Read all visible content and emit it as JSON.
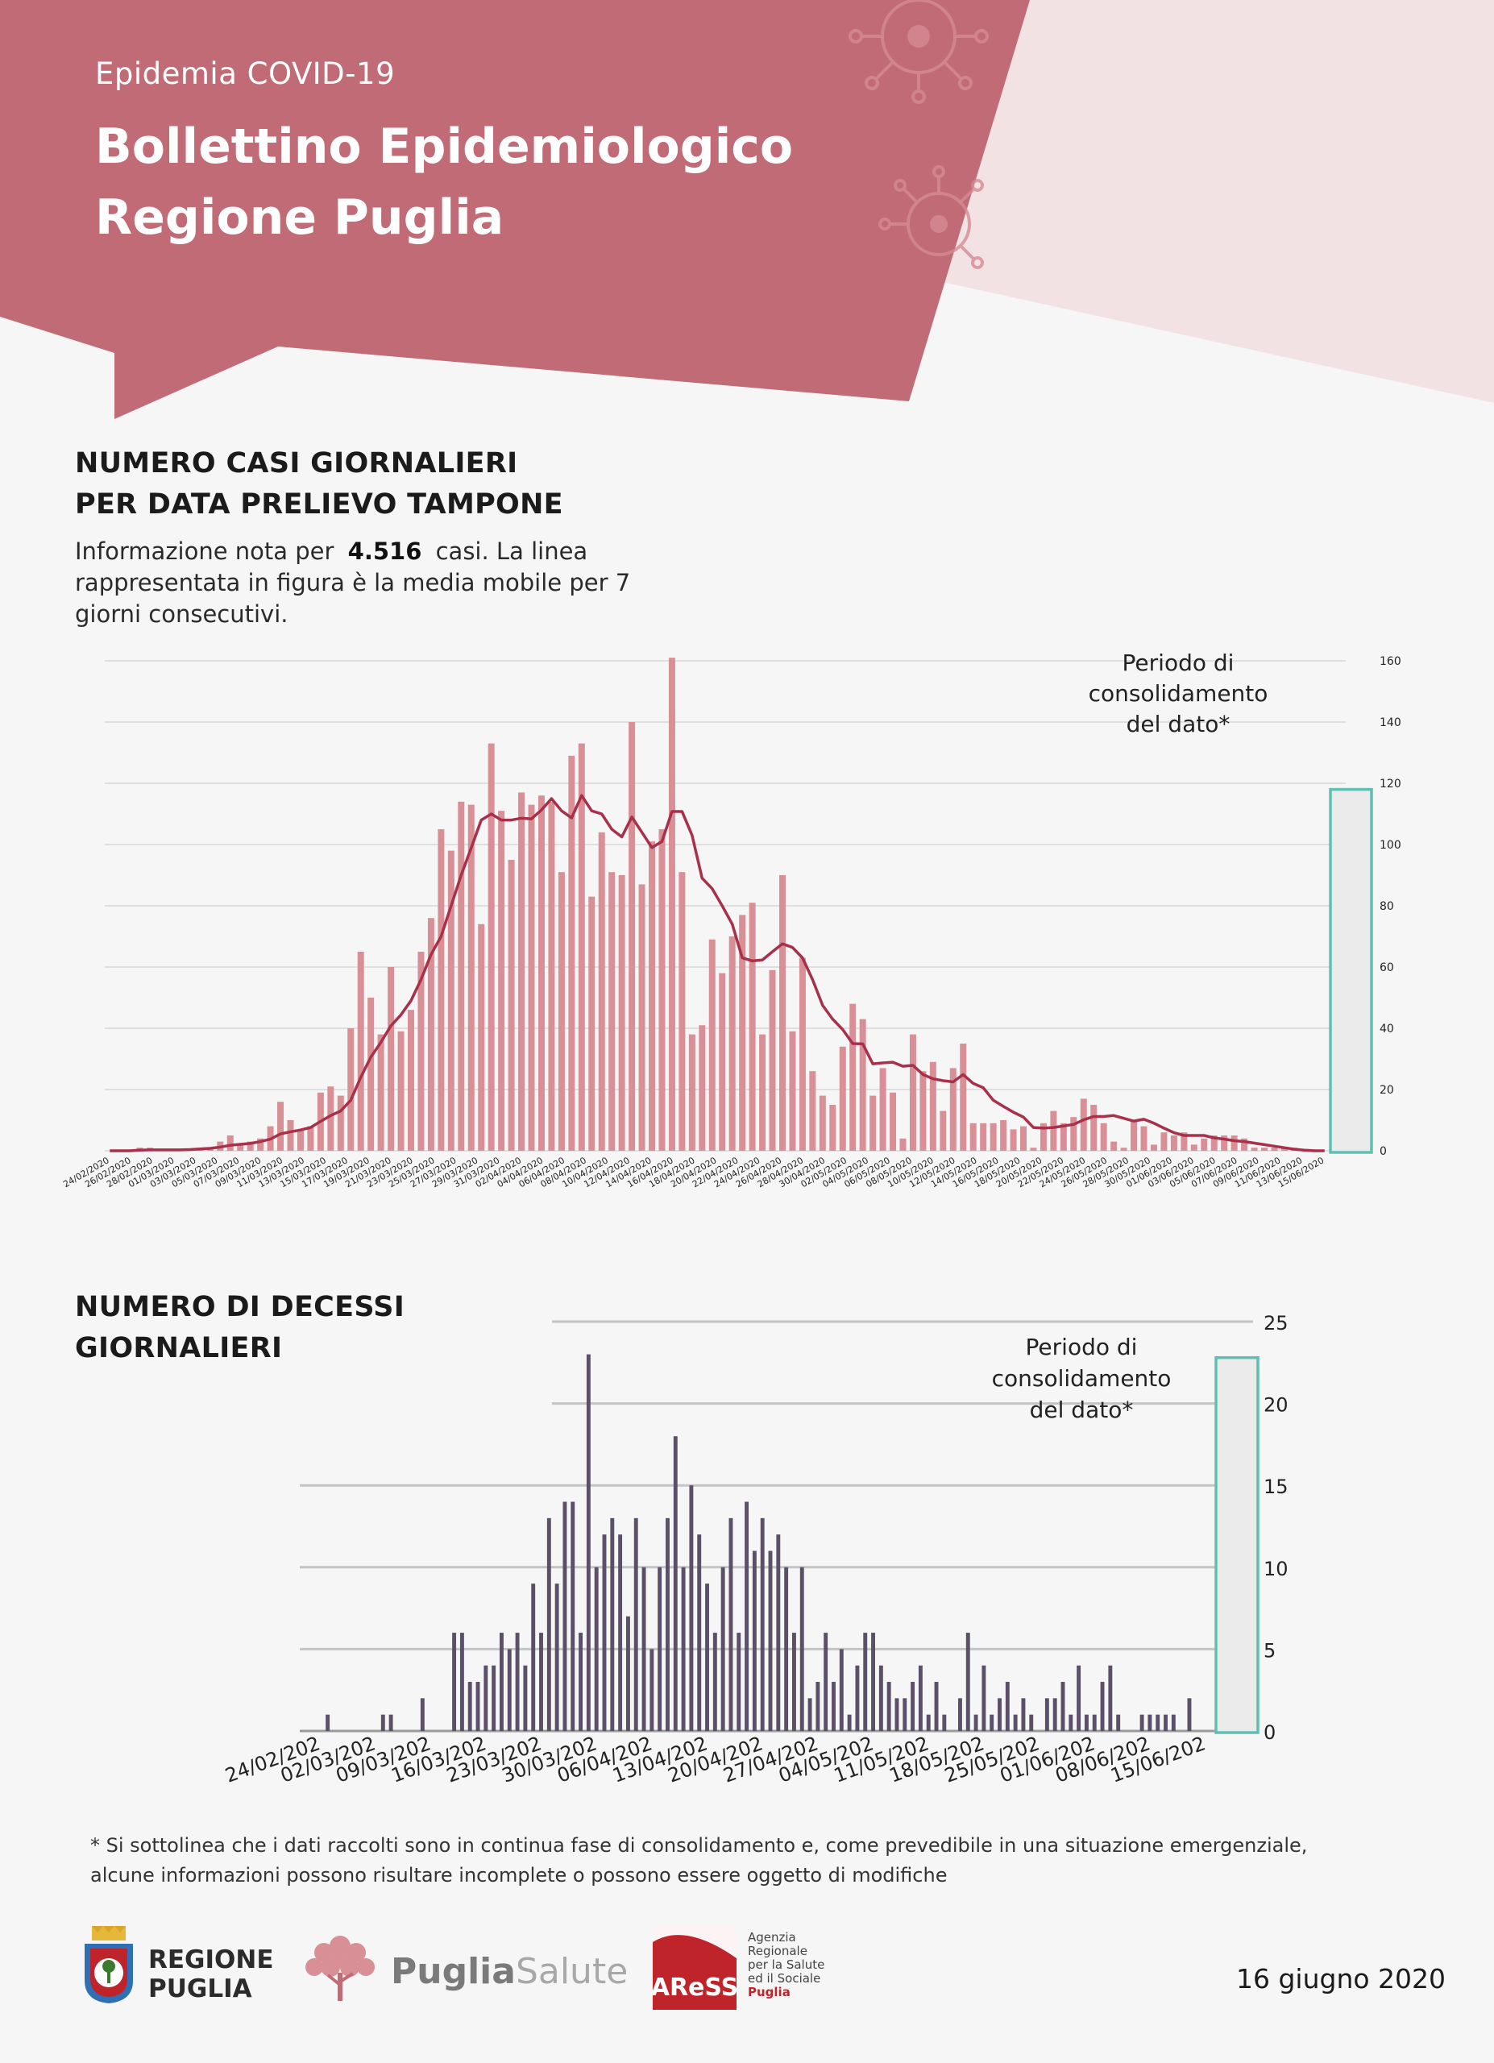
{
  "header": {
    "pre_title": "Epidemia COVID-19",
    "title_line1": "Bollettino Epidemiologico",
    "title_line2": "Regione Puglia",
    "colors": {
      "banner": "#c06b76",
      "banner_light": "#f3e2e3"
    }
  },
  "section_cases": {
    "title_line1": "NUMERO CASI GIORNALIERI",
    "title_line2": "PER DATA PRELIEVO TAMPONE",
    "desc_pre": "Informazione nota per",
    "desc_number": "4.516",
    "desc_post": "casi. La linea rappresentata in figura è la media mobile per 7 giorni consecutivi."
  },
  "section_deaths": {
    "title_line1": "NUMERO DI DECESSI",
    "title_line2": "GIORNALIERI"
  },
  "chart_data": [
    {
      "type": "bar",
      "id": "cases",
      "title": "NUMERO CASI GIORNALIERI PER DATA PRELIEVO TAMPONE",
      "x_start": "24/02/2020",
      "x_end": "15/06/2020",
      "tick_labels": [
        "24/02/2020",
        "26/02/2020",
        "28/02/2020",
        "01/03/2020",
        "03/03/2020",
        "05/03/2020",
        "07/03/2020",
        "09/03/2020",
        "11/03/2020",
        "13/03/2020",
        "15/03/2020",
        "17/03/2020",
        "19/03/2020",
        "21/03/2020",
        "23/03/2020",
        "25/03/2020",
        "27/03/2020",
        "29/03/2020",
        "31/03/2020",
        "02/04/2020",
        "04/04/2020",
        "06/04/2020",
        "08/04/2020",
        "10/04/2020",
        "12/04/2020",
        "14/04/2020",
        "16/04/2020",
        "18/04/2020",
        "20/04/2020",
        "22/04/2020",
        "24/04/2020",
        "26/04/2020",
        "28/04/2020",
        "30/04/2020",
        "02/05/2020",
        "04/05/2020",
        "06/05/2020",
        "08/05/2020",
        "10/05/2020",
        "12/05/2020",
        "14/05/2020",
        "16/05/2020",
        "18/05/2020",
        "20/05/2020",
        "22/05/2020",
        "24/05/2020",
        "26/05/2020",
        "28/05/2020",
        "30/05/2020",
        "01/06/2020",
        "03/06/2020",
        "05/06/2020",
        "07/06/2020",
        "09/06/2020",
        "11/06/2020",
        "13/06/2020",
        "15/06/2020"
      ],
      "y_ticks": [
        "0",
        "20",
        "40",
        "60",
        "80",
        "100",
        "120",
        "140",
        "160"
      ],
      "ylim": [
        0,
        160
      ],
      "values": [
        0,
        0,
        0,
        1,
        1,
        0,
        0,
        0,
        0,
        1,
        1,
        3,
        5,
        2,
        3,
        4,
        8,
        16,
        10,
        7,
        8,
        19,
        21,
        18,
        40,
        65,
        50,
        38,
        60,
        39,
        46,
        65,
        76,
        105,
        98,
        114,
        113,
        74,
        133,
        111,
        95,
        117,
        113,
        116,
        114,
        91,
        129,
        133,
        83,
        104,
        91,
        90,
        140,
        87,
        101,
        105,
        161,
        91,
        38,
        41,
        69,
        58,
        70,
        77,
        81,
        38,
        59,
        90,
        39,
        63,
        26,
        18,
        15,
        34,
        48,
        43,
        18,
        27,
        19,
        4,
        38,
        26,
        29,
        13,
        27,
        35,
        9,
        9,
        9,
        10,
        7,
        8,
        1,
        9,
        13,
        9,
        11,
        17,
        15,
        9,
        3,
        1,
        10,
        8,
        2,
        6,
        5,
        6,
        2,
        4,
        5,
        5,
        5,
        4,
        1,
        1,
        1,
        1,
        1,
        0,
        0,
        0
      ],
      "moving_average": [
        0,
        0,
        0,
        0.2,
        0.3,
        0.3,
        0.3,
        0.3,
        0.4,
        0.6,
        0.8,
        1.2,
        1.8,
        2.1,
        2.4,
        3.0,
        3.8,
        5.5,
        6.2,
        6.8,
        7.6,
        9.6,
        11.5,
        13.0,
        16.5,
        24.0,
        30.6,
        35.4,
        40.8,
        44.4,
        49.0,
        55.9,
        64.1,
        70.0,
        80.0,
        90.0,
        98.9,
        108.0,
        110.0,
        108.0,
        108.0,
        108.6,
        108.4,
        111.3,
        115.0,
        111.0,
        108.7,
        116.0,
        111.0,
        110.0,
        105.0,
        102.5,
        109.0,
        104.0,
        99.0,
        101.0,
        110.8,
        110.8,
        103.0,
        89.0,
        85.6,
        80.0,
        74.0,
        63.0,
        62.0,
        62.3,
        65.0,
        67.6,
        66.4,
        63.0,
        55.9,
        47.5,
        43.0,
        39.6,
        35.0,
        34.9,
        28.4,
        28.7,
        28.9,
        27.6,
        27.9,
        24.9,
        23.5,
        22.9,
        22.5,
        24.9,
        22.0,
        20.6,
        16.5,
        14.5,
        12.6,
        11.0,
        7.6,
        7.4,
        7.6,
        8.1,
        8.6,
        10.1,
        11.2,
        11.2,
        11.5,
        10.6,
        9.7,
        10.3,
        9.0,
        7.4,
        5.9,
        5.0,
        5.0,
        5.0,
        4.2,
        3.8,
        3.3,
        3.0,
        2.5,
        2.0,
        1.5,
        1.0,
        0.5,
        0.2,
        0,
        0
      ],
      "series": [
        {
          "name": "",
          "kind": "bar",
          "color": "#d88f96"
        },
        {
          "name": "",
          "kind": "line",
          "color": "#a8304a"
        }
      ],
      "annotation": {
        "line1": "Periodo di",
        "line2": "consolidamento",
        "line3": "del dato*",
        "color": "#5fbfb0"
      },
      "grid": true
    },
    {
      "type": "bar",
      "id": "deaths",
      "title": "NUMERO DI DECESSI GIORNALIERI",
      "x_start": "24/02/2020",
      "x_end": "15/06/2020",
      "tick_labels": [
        "24/02/202",
        "02/03/202",
        "09/03/202",
        "16/03/202",
        "23/03/202",
        "30/03/202",
        "06/04/202",
        "13/04/202",
        "20/04/202",
        "27/04/202",
        "04/05/202",
        "11/05/202",
        "18/05/202",
        "25/05/202",
        "01/06/202",
        "08/06/202",
        "15/06/202"
      ],
      "y_ticks": [
        "0",
        "5",
        "10",
        "15",
        "20",
        "25"
      ],
      "ylim": [
        0,
        25
      ],
      "values": [
        0,
        0,
        0,
        1,
        0,
        0,
        0,
        0,
        0,
        0,
        1,
        1,
        0,
        0,
        0,
        2,
        0,
        0,
        0,
        6,
        6,
        3,
        3,
        4,
        4,
        6,
        5,
        6,
        4,
        9,
        6,
        13,
        9,
        14,
        14,
        6,
        23,
        10,
        12,
        13,
        12,
        7,
        13,
        10,
        5,
        10,
        13,
        18,
        10,
        15,
        12,
        9,
        6,
        10,
        13,
        6,
        14,
        11,
        13,
        11,
        12,
        10,
        6,
        10,
        2,
        3,
        6,
        3,
        5,
        1,
        4,
        6,
        6,
        4,
        3,
        2,
        2,
        3,
        4,
        1,
        3,
        1,
        0,
        2,
        6,
        1,
        4,
        1,
        2,
        3,
        1,
        2,
        1,
        0,
        2,
        2,
        3,
        1,
        4,
        1,
        1,
        3,
        4,
        1,
        0,
        0,
        1,
        1,
        1,
        1,
        1,
        0,
        2,
        0,
        0,
        0
      ],
      "series": [
        {
          "name": "",
          "kind": "bar",
          "color": "#5b5068"
        }
      ],
      "annotation": {
        "line1": "Periodo di",
        "line2": "consolidamento",
        "line3": "del dato*",
        "color": "#5fbfb0"
      },
      "grid": true
    }
  ],
  "footnote": {
    "line1": "* Si sottolinea che i dati raccolti sono in continua fase di consolidamento e, come prevedibile in una situazione emergenziale,",
    "line2": "alcune informazioni possono risultare incomplete o possono essere oggetto di modifiche"
  },
  "footer": {
    "regione_line1": "REGIONE",
    "regione_line2": "PUGLIA",
    "puglia_salute_bold": "Puglia",
    "puglia_salute_light": "Salute",
    "aress_mark": "AReSS",
    "aress_line1": "Agenzia",
    "aress_line2": "Regionale",
    "aress_line3": "per la Salute",
    "aress_line4": "ed il Sociale",
    "aress_line5": "Puglia",
    "date": "16 giugno 2020"
  }
}
